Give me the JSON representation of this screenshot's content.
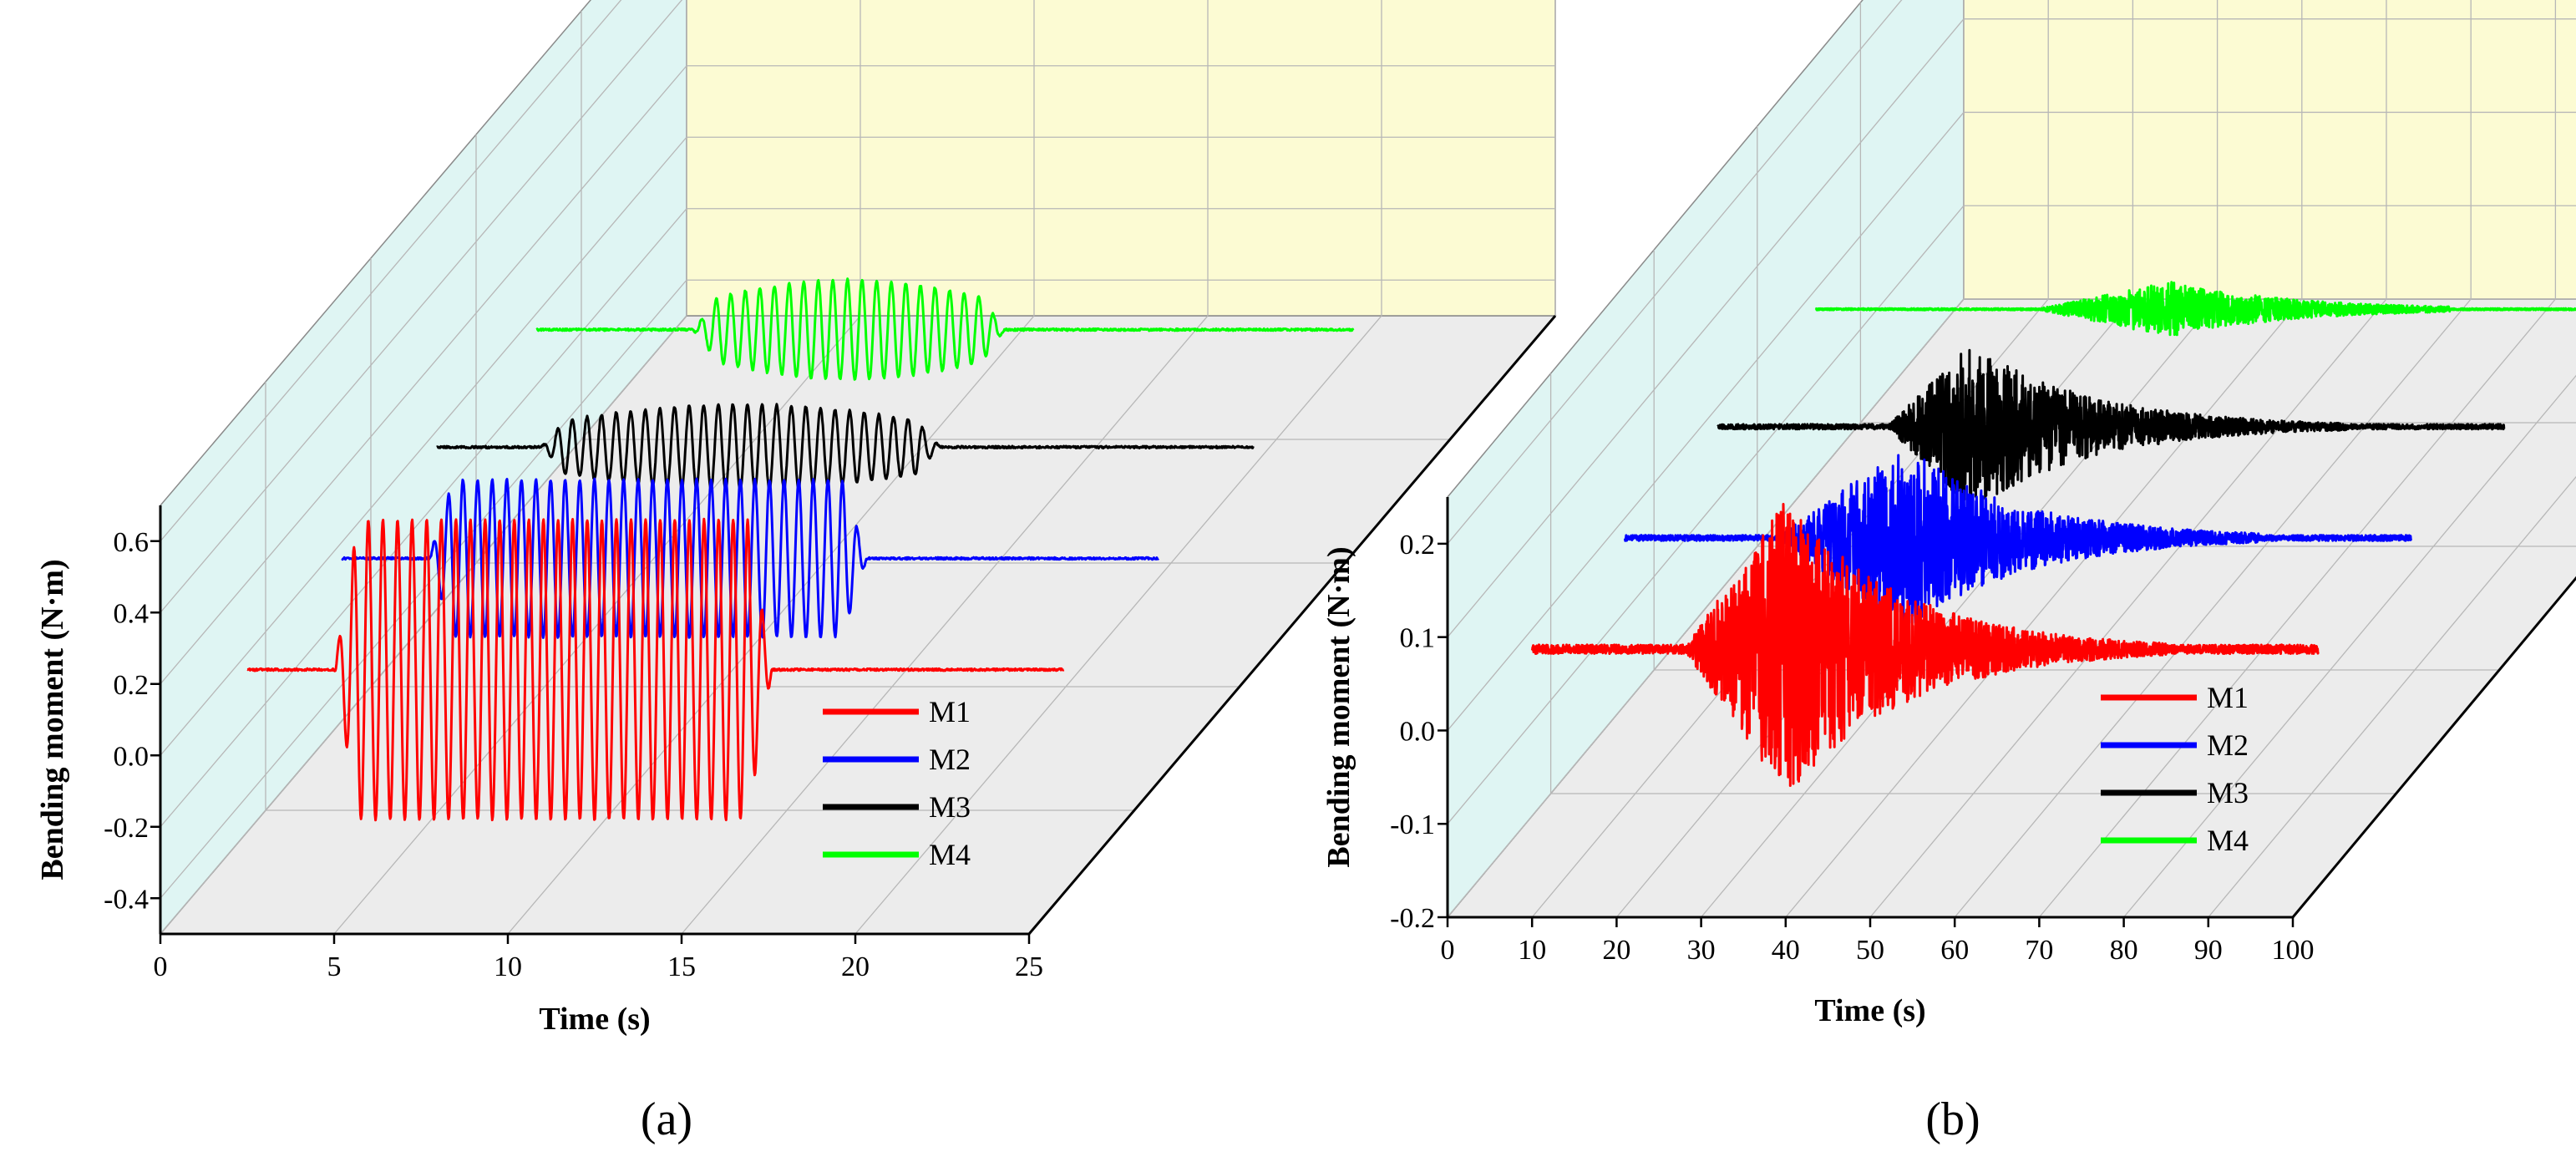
{
  "figure": {
    "panels": [
      "(a)",
      "(b)"
    ]
  },
  "chart_data": [
    {
      "type": "line",
      "view": "3d-waterfall",
      "panel_label": "(a)",
      "xlabel": "Time (s)",
      "ylabel": "Bending moment (N·m)",
      "xlim": [
        0,
        25
      ],
      "ylim": [
        -0.5,
        0.7
      ],
      "xticks": [
        0,
        5,
        10,
        15,
        20,
        25
      ],
      "yticks": [
        -0.4,
        -0.2,
        0.0,
        0.2,
        0.4,
        0.6
      ],
      "xtick_labels": [
        "0",
        "5",
        "10",
        "15",
        "20",
        "25"
      ],
      "ytick_labels": [
        "-0.4",
        "-0.2",
        "0.0",
        "0.2",
        "0.4",
        "0.6"
      ],
      "grid": true,
      "legend": {
        "position": "bottom-right",
        "entries": [
          "M1",
          "M2",
          "M3",
          "M4"
        ]
      },
      "series": [
        {
          "name": "M1",
          "color": "#ff0000",
          "signal": "harmonic",
          "t_start": 2.5,
          "t_end": 26,
          "onset": 5.0,
          "offset": 17.6,
          "amplitude": 0.42,
          "period": 0.42,
          "baseline": 0.24
        },
        {
          "name": "M2",
          "color": "#0000ff",
          "signal": "harmonic",
          "t_start": 2.5,
          "t_end": 26,
          "onset": 5.0,
          "offset": 17.6,
          "amplitude": 0.22,
          "period": 0.42,
          "baseline": 0.24
        },
        {
          "name": "M3",
          "color": "#000000",
          "signal": "harmonic",
          "t_start": 2.5,
          "t_end": 26,
          "onset": 5.5,
          "offset": 17.0,
          "amplitude": 0.12,
          "period": 0.42,
          "baseline": 0.24
        },
        {
          "name": "M4",
          "color": "#00ff00",
          "signal": "harmonic",
          "t_start": 2.5,
          "t_end": 26,
          "onset": 7.0,
          "offset": 16.0,
          "amplitude": 0.14,
          "period": 0.42,
          "baseline": 0.24
        }
      ]
    },
    {
      "type": "line",
      "view": "3d-waterfall",
      "panel_label": "(b)",
      "xlabel": "Time (s)",
      "ylabel": "Bending moment (N·m)",
      "xlim": [
        0,
        100
      ],
      "ylim": [
        -0.2,
        0.25
      ],
      "xticks": [
        0,
        10,
        20,
        30,
        40,
        50,
        60,
        70,
        80,
        90,
        100
      ],
      "yticks": [
        -0.2,
        -0.1,
        0.0,
        0.1,
        0.2
      ],
      "xtick_labels": [
        "0",
        "10",
        "20",
        "30",
        "40",
        "50",
        "60",
        "70",
        "80",
        "90",
        "100"
      ],
      "ytick_labels": [
        "-0.2",
        "-0.1",
        "0.0",
        "0.1",
        "0.2"
      ],
      "grid": true,
      "legend": {
        "position": "bottom-right",
        "entries": [
          "M1",
          "M2",
          "M3",
          "M4"
        ]
      },
      "series": [
        {
          "name": "M1",
          "color": "#ff0000",
          "signal": "random",
          "t_start": 10,
          "t_end": 103,
          "onset": 28,
          "offset": 85,
          "peak": 40,
          "amplitude": 0.16,
          "baseline": 0.087
        },
        {
          "name": "M2",
          "color": "#0000ff",
          "signal": "random",
          "t_start": 10,
          "t_end": 103,
          "onset": 28,
          "offset": 85,
          "peak": 43,
          "amplitude": 0.1,
          "baseline": 0.087
        },
        {
          "name": "M3",
          "color": "#000000",
          "signal": "random",
          "t_start": 10,
          "t_end": 103,
          "onset": 30,
          "offset": 85,
          "peak": 40,
          "amplitude": 0.09,
          "baseline": 0.087
        },
        {
          "name": "M4",
          "color": "#00ff00",
          "signal": "random",
          "t_start": 10,
          "t_end": 103,
          "onset": 36,
          "offset": 85,
          "peak": 52,
          "amplitude": 0.03,
          "baseline": 0.087
        }
      ]
    }
  ]
}
